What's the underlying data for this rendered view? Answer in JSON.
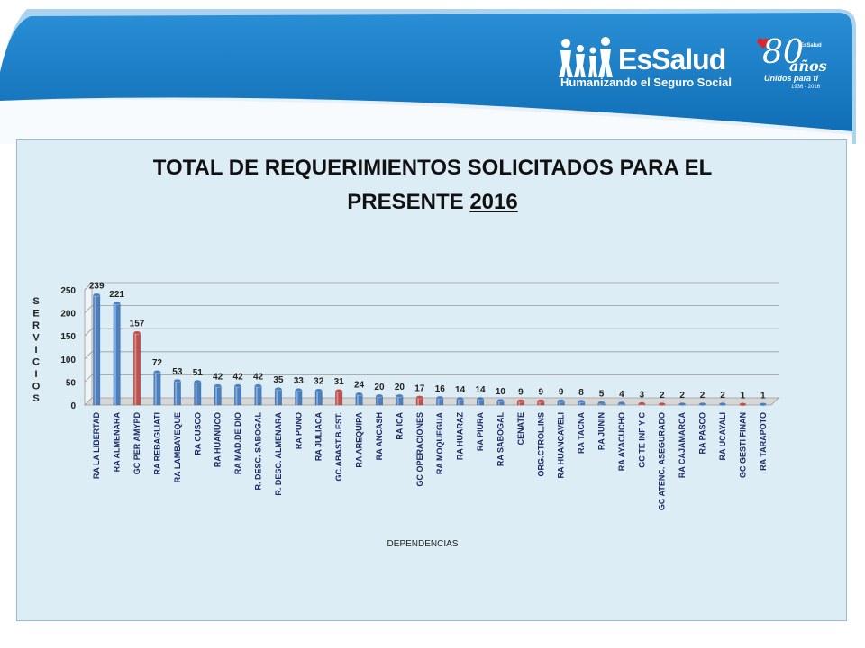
{
  "header": {
    "brand": "EsSalud",
    "tagline": "Humanizando el Seguro Social",
    "anniversary": {
      "number": "80",
      "small": "EsSalud",
      "word": "años",
      "tagline": "Unidos para ti",
      "years": "1936 - 2016"
    },
    "colors": {
      "banner": "#1a7bc4",
      "banner_light": "#8fc2e6"
    }
  },
  "chart_data": {
    "type": "bar",
    "title": "TOTAL DE REQUERIMIENTOS SOLICITADOS PARA EL PRESENTE 2016",
    "title_line1": "TOTAL DE REQUERIMIENTOS SOLICITADOS PARA EL",
    "title_line2": "PRESENTE",
    "title_year": "2016",
    "xlabel": "DEPENDENCIAS",
    "ylabel": "SERVICIOS",
    "ylim": [
      0,
      250
    ],
    "yticks": [
      0,
      50,
      100,
      150,
      200,
      250
    ],
    "grid": true,
    "legend": "none",
    "colors": {
      "blue": "#4a7fc1",
      "red": "#c0504d"
    },
    "categories": [
      "RA LA LIBERTAD",
      "RA ALMENARA",
      "GC PER AMYPD",
      "RA REBAGLIATI",
      "RA LAMBAYEQUE",
      "RA CUSCO",
      "RA HUANUCO",
      "RA MAD.DE DIO",
      "R. DESC. SABOGAL",
      "R. DESC. ALMENARA",
      "RA PUNO",
      "RA JULIACA",
      "GC.ABAST.B.EST.",
      "RA AREQUIPA",
      "RA ANCASH",
      "RA ICA",
      "GC OPERACIONES",
      "RA MOQUEGUA",
      "RA HUARAZ",
      "RA PIURA",
      "RA SABOGAL",
      "CENATE",
      "ORG.CTROL.INS",
      "RA HUANCAVELI",
      "RA TACNA",
      "RA JUNIN",
      "RA AYACUCHO",
      "GC TE INF Y C",
      "GC ATENC. ASEGURADO",
      "RA CAJAMARCA",
      "RA PASCO",
      "RA UCAYALI",
      "GC GESTI FINAN",
      "RA TARAPOTO"
    ],
    "values": [
      239,
      221,
      157,
      72,
      53,
      51,
      42,
      42,
      42,
      35,
      33,
      32,
      31,
      24,
      20,
      20,
      17,
      16,
      14,
      14,
      10,
      9,
      9,
      9,
      8,
      5,
      4,
      3,
      2,
      2,
      2,
      2,
      1,
      1
    ],
    "bar_colors": [
      "blue",
      "blue",
      "red",
      "blue",
      "blue",
      "blue",
      "blue",
      "blue",
      "blue",
      "blue",
      "blue",
      "blue",
      "red",
      "blue",
      "blue",
      "blue",
      "red",
      "blue",
      "blue",
      "blue",
      "blue",
      "red",
      "red",
      "blue",
      "blue",
      "blue",
      "blue",
      "red",
      "red",
      "blue",
      "blue",
      "blue",
      "red",
      "blue"
    ]
  }
}
